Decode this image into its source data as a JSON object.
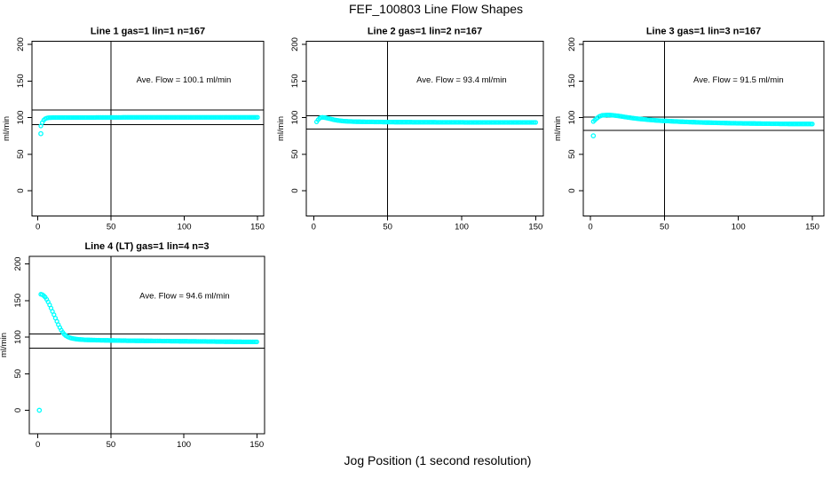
{
  "figure": {
    "title": "FEF_100803  Line Flow Shapes",
    "xlabel": "Jog Position (1 second resolution)",
    "background": "#FFFFFF",
    "marker_color": "#00FFFF",
    "axis_color": "#000000",
    "marker": "open-circle"
  },
  "chart_data": [
    {
      "type": "scatter",
      "title": "Line 1 gas=1 lin=1 n=167",
      "line": 1,
      "gas": 1,
      "lin": 1,
      "n": 167,
      "ylabel": "ml/min",
      "annotation": "Ave. Flow =  100.1  ml/min",
      "ave_flow_ml_min": 100.1,
      "xticks": [
        0,
        50,
        100,
        150
      ],
      "yticks": [
        0,
        50,
        100,
        150,
        200
      ],
      "vline_x": 50,
      "hlines": [
        110.1,
        90.1
      ],
      "outliers": [
        [
          2,
          78
        ]
      ],
      "points": [
        [
          2,
          88.5
        ],
        [
          3,
          93
        ],
        [
          4,
          96.5
        ],
        [
          5,
          98.3
        ],
        [
          6,
          99.3
        ],
        [
          8,
          99.9
        ],
        [
          12,
          100
        ],
        [
          30,
          100
        ],
        [
          60,
          100.2
        ],
        [
          90,
          100.2
        ],
        [
          120,
          100.3
        ],
        [
          150,
          100.3
        ]
      ]
    },
    {
      "type": "scatter",
      "title": "Line 2 gas=1 lin=2 n=167",
      "line": 2,
      "gas": 1,
      "lin": 2,
      "n": 167,
      "ylabel": "ml/min",
      "annotation": "Ave. Flow =  93.4  ml/min",
      "ave_flow_ml_min": 93.4,
      "xticks": [
        0,
        50,
        100,
        150
      ],
      "yticks": [
        0,
        50,
        100,
        150,
        200
      ],
      "vline_x": 50,
      "hlines": [
        102.7,
        84.1
      ],
      "outliers": [],
      "points": [
        [
          2,
          94
        ],
        [
          3,
          97
        ],
        [
          4,
          99
        ],
        [
          5,
          100
        ],
        [
          6,
          100.3
        ],
        [
          8,
          99.8
        ],
        [
          10,
          98.8
        ],
        [
          12,
          97.8
        ],
        [
          14,
          96.8
        ],
        [
          16,
          96.1
        ],
        [
          18,
          95.6
        ],
        [
          20,
          95.2
        ],
        [
          24,
          94.7
        ],
        [
          28,
          94.4
        ],
        [
          35,
          94.1
        ],
        [
          50,
          93.8
        ],
        [
          70,
          93.6
        ],
        [
          100,
          93.4
        ],
        [
          130,
          93.3
        ],
        [
          150,
          93.3
        ]
      ]
    },
    {
      "type": "scatter",
      "title": "Line 3 gas=1 lin=3 n=167",
      "line": 3,
      "gas": 1,
      "lin": 3,
      "n": 167,
      "ylabel": "ml/min",
      "annotation": "Ave. Flow =  91.5  ml/min",
      "ave_flow_ml_min": 91.5,
      "xticks": [
        0,
        50,
        100,
        150
      ],
      "yticks": [
        0,
        50,
        100,
        150,
        200
      ],
      "vline_x": 50,
      "hlines": [
        100.7,
        82.4
      ],
      "outliers": [
        [
          2,
          75
        ]
      ],
      "points": [
        [
          2,
          94.5
        ],
        [
          3,
          96.5
        ],
        [
          4,
          98.5
        ],
        [
          5,
          100
        ],
        [
          6,
          101.5
        ],
        [
          8,
          103
        ],
        [
          11,
          103.5
        ],
        [
          15,
          103.2
        ],
        [
          19,
          102.2
        ],
        [
          23,
          100.9
        ],
        [
          27,
          99.7
        ],
        [
          32,
          98.4
        ],
        [
          38,
          97.2
        ],
        [
          45,
          96
        ],
        [
          55,
          94.9
        ],
        [
          65,
          94
        ],
        [
          75,
          93.3
        ],
        [
          85,
          92.8
        ],
        [
          95,
          92.3
        ],
        [
          105,
          92
        ],
        [
          115,
          91.7
        ],
        [
          125,
          91.5
        ],
        [
          135,
          91.3
        ],
        [
          150,
          91.2
        ]
      ]
    },
    {
      "type": "scatter",
      "title": "Line 4 (LT) gas=1 lin=4 n=3",
      "line": 4,
      "gas": 1,
      "lin": 4,
      "n": 3,
      "ylabel": "ml/min",
      "annotation": "Ave. Flow =  94.6  ml/min",
      "ave_flow_ml_min": 94.6,
      "xticks": [
        0,
        50,
        100,
        150
      ],
      "yticks": [
        0,
        50,
        100,
        150,
        200
      ],
      "vline_x": 50,
      "hlines": [
        104.1,
        85.1
      ],
      "outliers": [
        [
          1,
          0
        ]
      ],
      "points": [
        [
          2,
          158.5
        ],
        [
          3,
          158
        ],
        [
          4,
          156.5
        ],
        [
          5,
          154.5
        ],
        [
          6,
          151.5
        ],
        [
          7,
          148
        ],
        [
          8,
          144
        ],
        [
          9,
          139.5
        ],
        [
          10,
          135
        ],
        [
          11,
          130.5
        ],
        [
          12,
          126
        ],
        [
          13,
          121.5
        ],
        [
          14,
          117
        ],
        [
          15,
          113
        ],
        [
          16,
          109.5
        ],
        [
          17,
          106.5
        ],
        [
          18,
          104
        ],
        [
          19,
          102.2
        ],
        [
          20,
          100.8
        ],
        [
          22,
          99
        ],
        [
          24,
          98
        ],
        [
          26,
          97.3
        ],
        [
          28,
          96.8
        ],
        [
          32,
          96.3
        ],
        [
          36,
          96
        ],
        [
          42,
          95.7
        ],
        [
          50,
          95.4
        ],
        [
          60,
          95.1
        ],
        [
          70,
          94.9
        ],
        [
          80,
          94.7
        ],
        [
          90,
          94.5
        ],
        [
          100,
          94.3
        ],
        [
          110,
          94.1
        ],
        [
          120,
          93.9
        ],
        [
          130,
          93.7
        ],
        [
          140,
          93.5
        ],
        [
          150,
          93.4
        ]
      ]
    }
  ]
}
